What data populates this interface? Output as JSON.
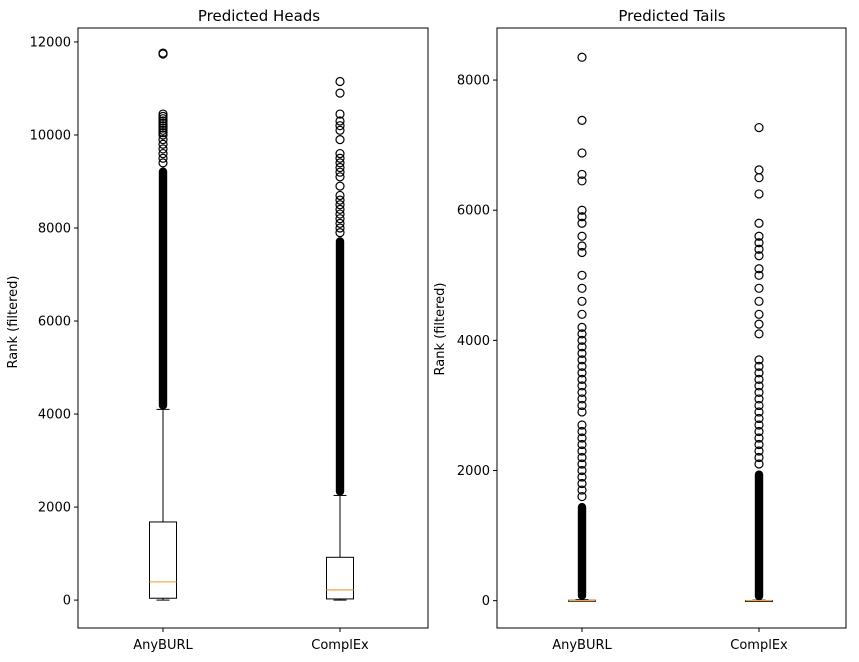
{
  "chart_data": [
    {
      "type": "box",
      "title": "Predicted Heads",
      "ylabel": "Rank (filtered)",
      "categories": [
        "AnyBURL",
        "ComplEx"
      ],
      "ylim": [
        -600,
        12300
      ],
      "yticks": [
        0,
        2000,
        4000,
        6000,
        8000,
        10000,
        12000
      ],
      "boxes": [
        {
          "name": "AnyBURL",
          "whisker_low": 0,
          "q1": 40,
          "median": 390,
          "q3": 1680,
          "whisker_high": 4100,
          "dense_outliers": [
            4100,
            9300
          ],
          "outliers": [
            9400,
            9500,
            9600,
            9700,
            9800,
            9900,
            10000,
            10050,
            10100,
            10150,
            10200,
            10250,
            10300,
            10350,
            10400,
            10450,
            11740,
            11760
          ]
        },
        {
          "name": "ComplEx",
          "whisker_low": 0,
          "q1": 25,
          "median": 220,
          "q3": 920,
          "whisker_high": 2250,
          "dense_outliers": [
            2250,
            7800
          ],
          "outliers": [
            7900,
            8000,
            8100,
            8200,
            8300,
            8400,
            8500,
            8600,
            8700,
            8900,
            9100,
            9200,
            9300,
            9400,
            9500,
            9600,
            9900,
            10100,
            10200,
            10300,
            10450,
            10900,
            11150
          ]
        }
      ]
    },
    {
      "type": "box",
      "title": "Predicted Tails",
      "ylabel": "Rank (filtered)",
      "categories": [
        "AnyBURL",
        "ComplEx"
      ],
      "ylim": [
        -420,
        8800
      ],
      "yticks": [
        0,
        2000,
        4000,
        6000,
        8000
      ],
      "boxes": [
        {
          "name": "AnyBURL",
          "whisker_low": 0,
          "q1": 0,
          "median": 2,
          "q3": 6,
          "whisker_high": 15,
          "dense_outliers": [
            15,
            1500
          ],
          "outliers": [
            1600,
            1700,
            1800,
            1900,
            2000,
            2100,
            2200,
            2300,
            2400,
            2500,
            2600,
            2700,
            2900,
            3000,
            3100,
            3200,
            3300,
            3400,
            3500,
            3600,
            3700,
            3800,
            3900,
            4000,
            4100,
            4200,
            4400,
            4600,
            4800,
            5000,
            5350,
            5450,
            5600,
            5800,
            5900,
            6000,
            6450,
            6550,
            6880,
            7380,
            8350
          ]
        },
        {
          "name": "ComplEx",
          "whisker_low": 0,
          "q1": 0,
          "median": 1,
          "q3": 3,
          "whisker_high": 8,
          "dense_outliers": [
            8,
            2000
          ],
          "outliers": [
            2100,
            2200,
            2300,
            2400,
            2500,
            2600,
            2700,
            2800,
            2900,
            3000,
            3100,
            3200,
            3300,
            3400,
            3500,
            3600,
            3700,
            4100,
            4250,
            4400,
            4600,
            4800,
            5000,
            5100,
            5300,
            5400,
            5500,
            5600,
            5800,
            6250,
            6500,
            6620,
            7270
          ]
        }
      ]
    }
  ]
}
